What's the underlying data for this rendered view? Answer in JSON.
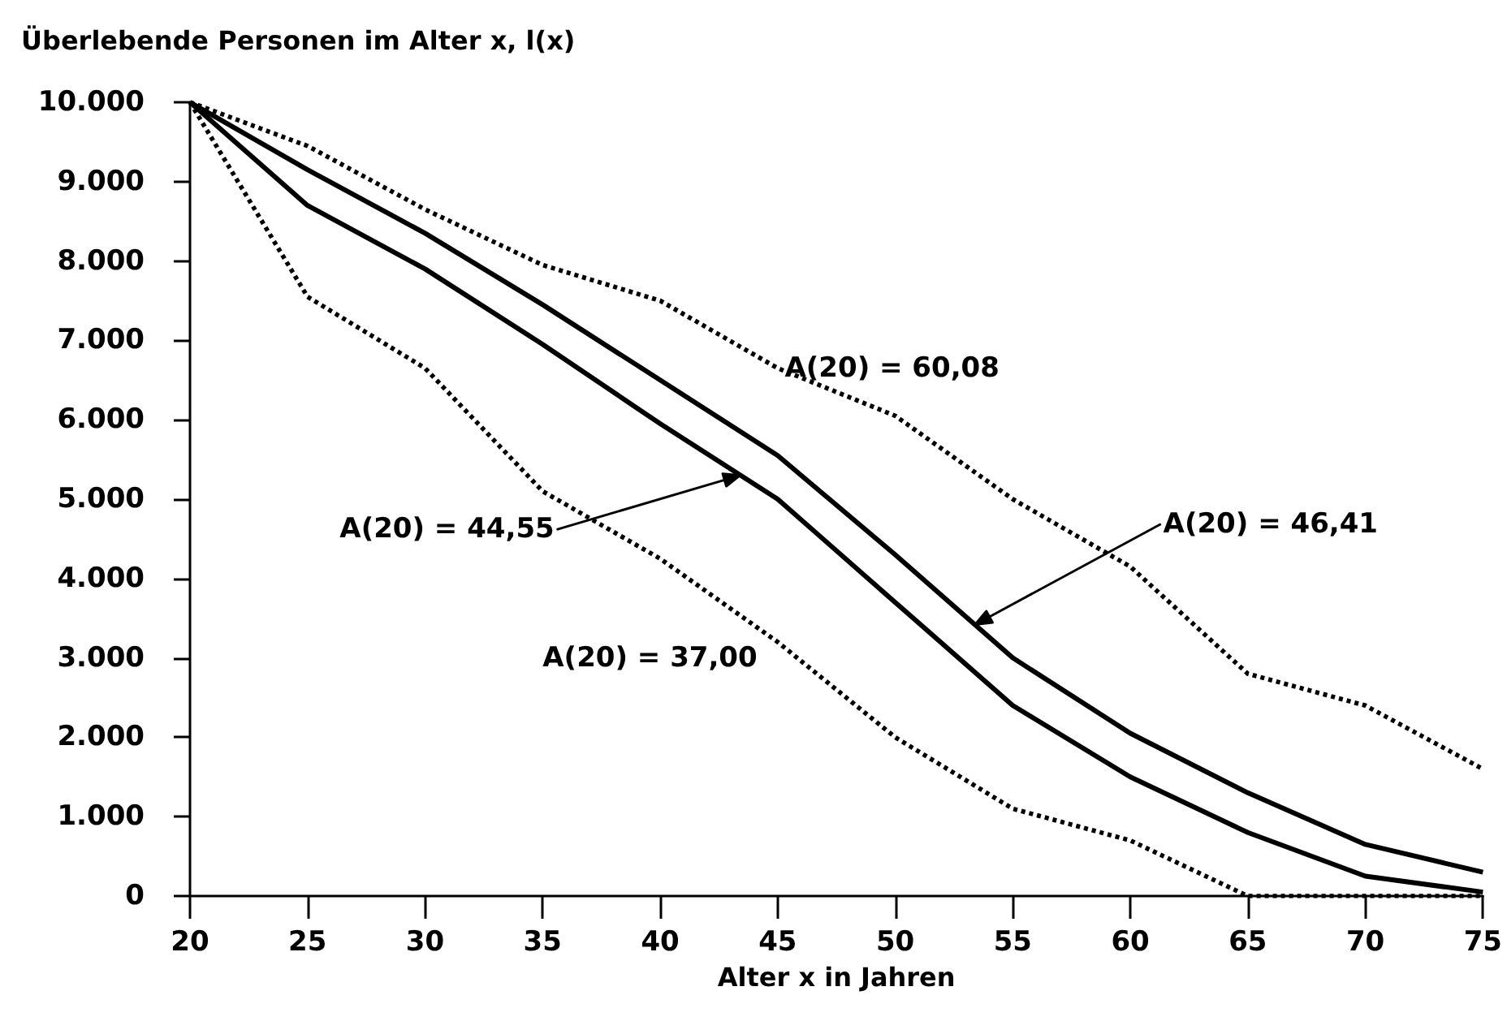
{
  "chart_data": {
    "type": "line",
    "ylabel": "Überlebende Personen im Alter x, l(x)",
    "xlabel": "Alter x in Jahren",
    "x": [
      20,
      25,
      30,
      35,
      40,
      45,
      50,
      55,
      60,
      65,
      70,
      75
    ],
    "series": [
      {
        "color": "#000000",
        "line_style": "dotted",
        "values": [
          10000,
          9450,
          8650,
          7950,
          7500,
          6650,
          6050,
          5000,
          4150,
          2800,
          2400,
          1600
        ]
      },
      {
        "color": "#000000",
        "line_style": "solid",
        "values": [
          10000,
          9150,
          8350,
          7450,
          6500,
          5550,
          4300,
          3000,
          2050,
          1300,
          650,
          300
        ]
      },
      {
        "color": "#000000",
        "line_style": "solid",
        "values": [
          10000,
          8700,
          7900,
          6950,
          5950,
          5000,
          3700,
          2400,
          1500,
          800,
          250,
          50
        ]
      },
      {
        "color": "#000000",
        "line_style": "dotted",
        "values": [
          10000,
          7550,
          6650,
          5100,
          4250,
          3200,
          2000,
          1100,
          700,
          0,
          0,
          0
        ]
      }
    ],
    "annotations": [
      "A(20) = 60,08",
      "A(20) = 46,41",
      "A(20) = 44,55",
      "A(20) = 37,00"
    ],
    "xlim": [
      20,
      75
    ],
    "xticks": [
      20,
      25,
      30,
      35,
      40,
      45,
      50,
      55,
      60,
      65,
      70,
      75
    ],
    "ylim": [
      0,
      10000
    ],
    "yticks": [
      {
        "value": 0,
        "label": "0"
      },
      {
        "value": 1000,
        "label": "1.000"
      },
      {
        "value": 2000,
        "label": "2.000"
      },
      {
        "value": 3000,
        "label": "3.000"
      },
      {
        "value": 4000,
        "label": "4.000"
      },
      {
        "value": 5000,
        "label": "5.000"
      },
      {
        "value": 6000,
        "label": "6.000"
      },
      {
        "value": 7000,
        "label": "7.000"
      },
      {
        "value": 8000,
        "label": "8.000"
      },
      {
        "value": 9000,
        "label": "9.000"
      },
      {
        "value": 10000,
        "label": "10.000"
      }
    ],
    "grid": false,
    "marker": "none"
  }
}
